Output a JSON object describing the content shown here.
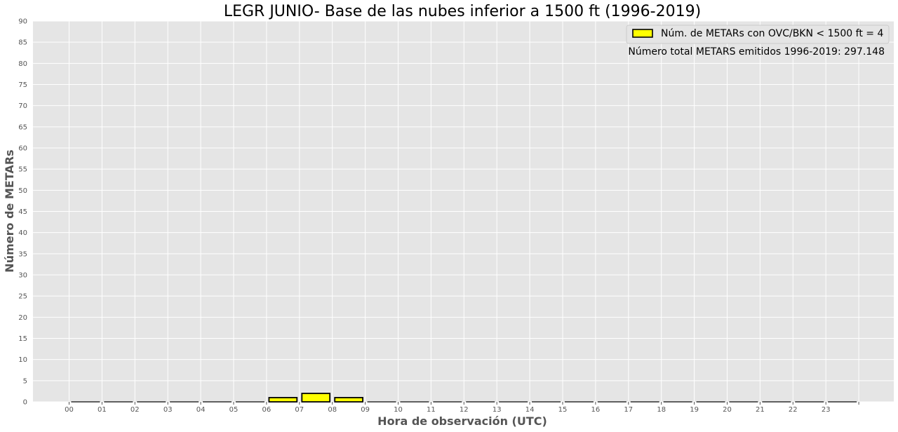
{
  "chart_data": {
    "type": "bar",
    "title": "LEGR JUNIO- Base de las nubes inferior a 1500 ft (1996-2019)",
    "xlabel": "Hora de observación (UTC)",
    "ylabel": "Número de METARs",
    "ylim": [
      0,
      90
    ],
    "ytick_step": 5,
    "categories": [
      "00",
      "01",
      "02",
      "03",
      "04",
      "05",
      "06",
      "07",
      "08",
      "09",
      "10",
      "11",
      "12",
      "13",
      "14",
      "15",
      "16",
      "17",
      "18",
      "19",
      "20",
      "21",
      "22",
      "23"
    ],
    "series": [
      {
        "name": "Núm. de METARs con OVC/BKN < 1500 ft = 4",
        "values": [
          0,
          0,
          0,
          0,
          0,
          0,
          1,
          2,
          1,
          0,
          0,
          0,
          0,
          0,
          0,
          0,
          0,
          0,
          0,
          0,
          0,
          0,
          0,
          0
        ],
        "color": "#ffff00",
        "edgecolor": "#000000"
      }
    ],
    "grid": true,
    "legend_position": "top-right",
    "annotation": "Número total METARS emitidos 1996-2019: 297.148",
    "background_color": "#e5e5e5"
  }
}
